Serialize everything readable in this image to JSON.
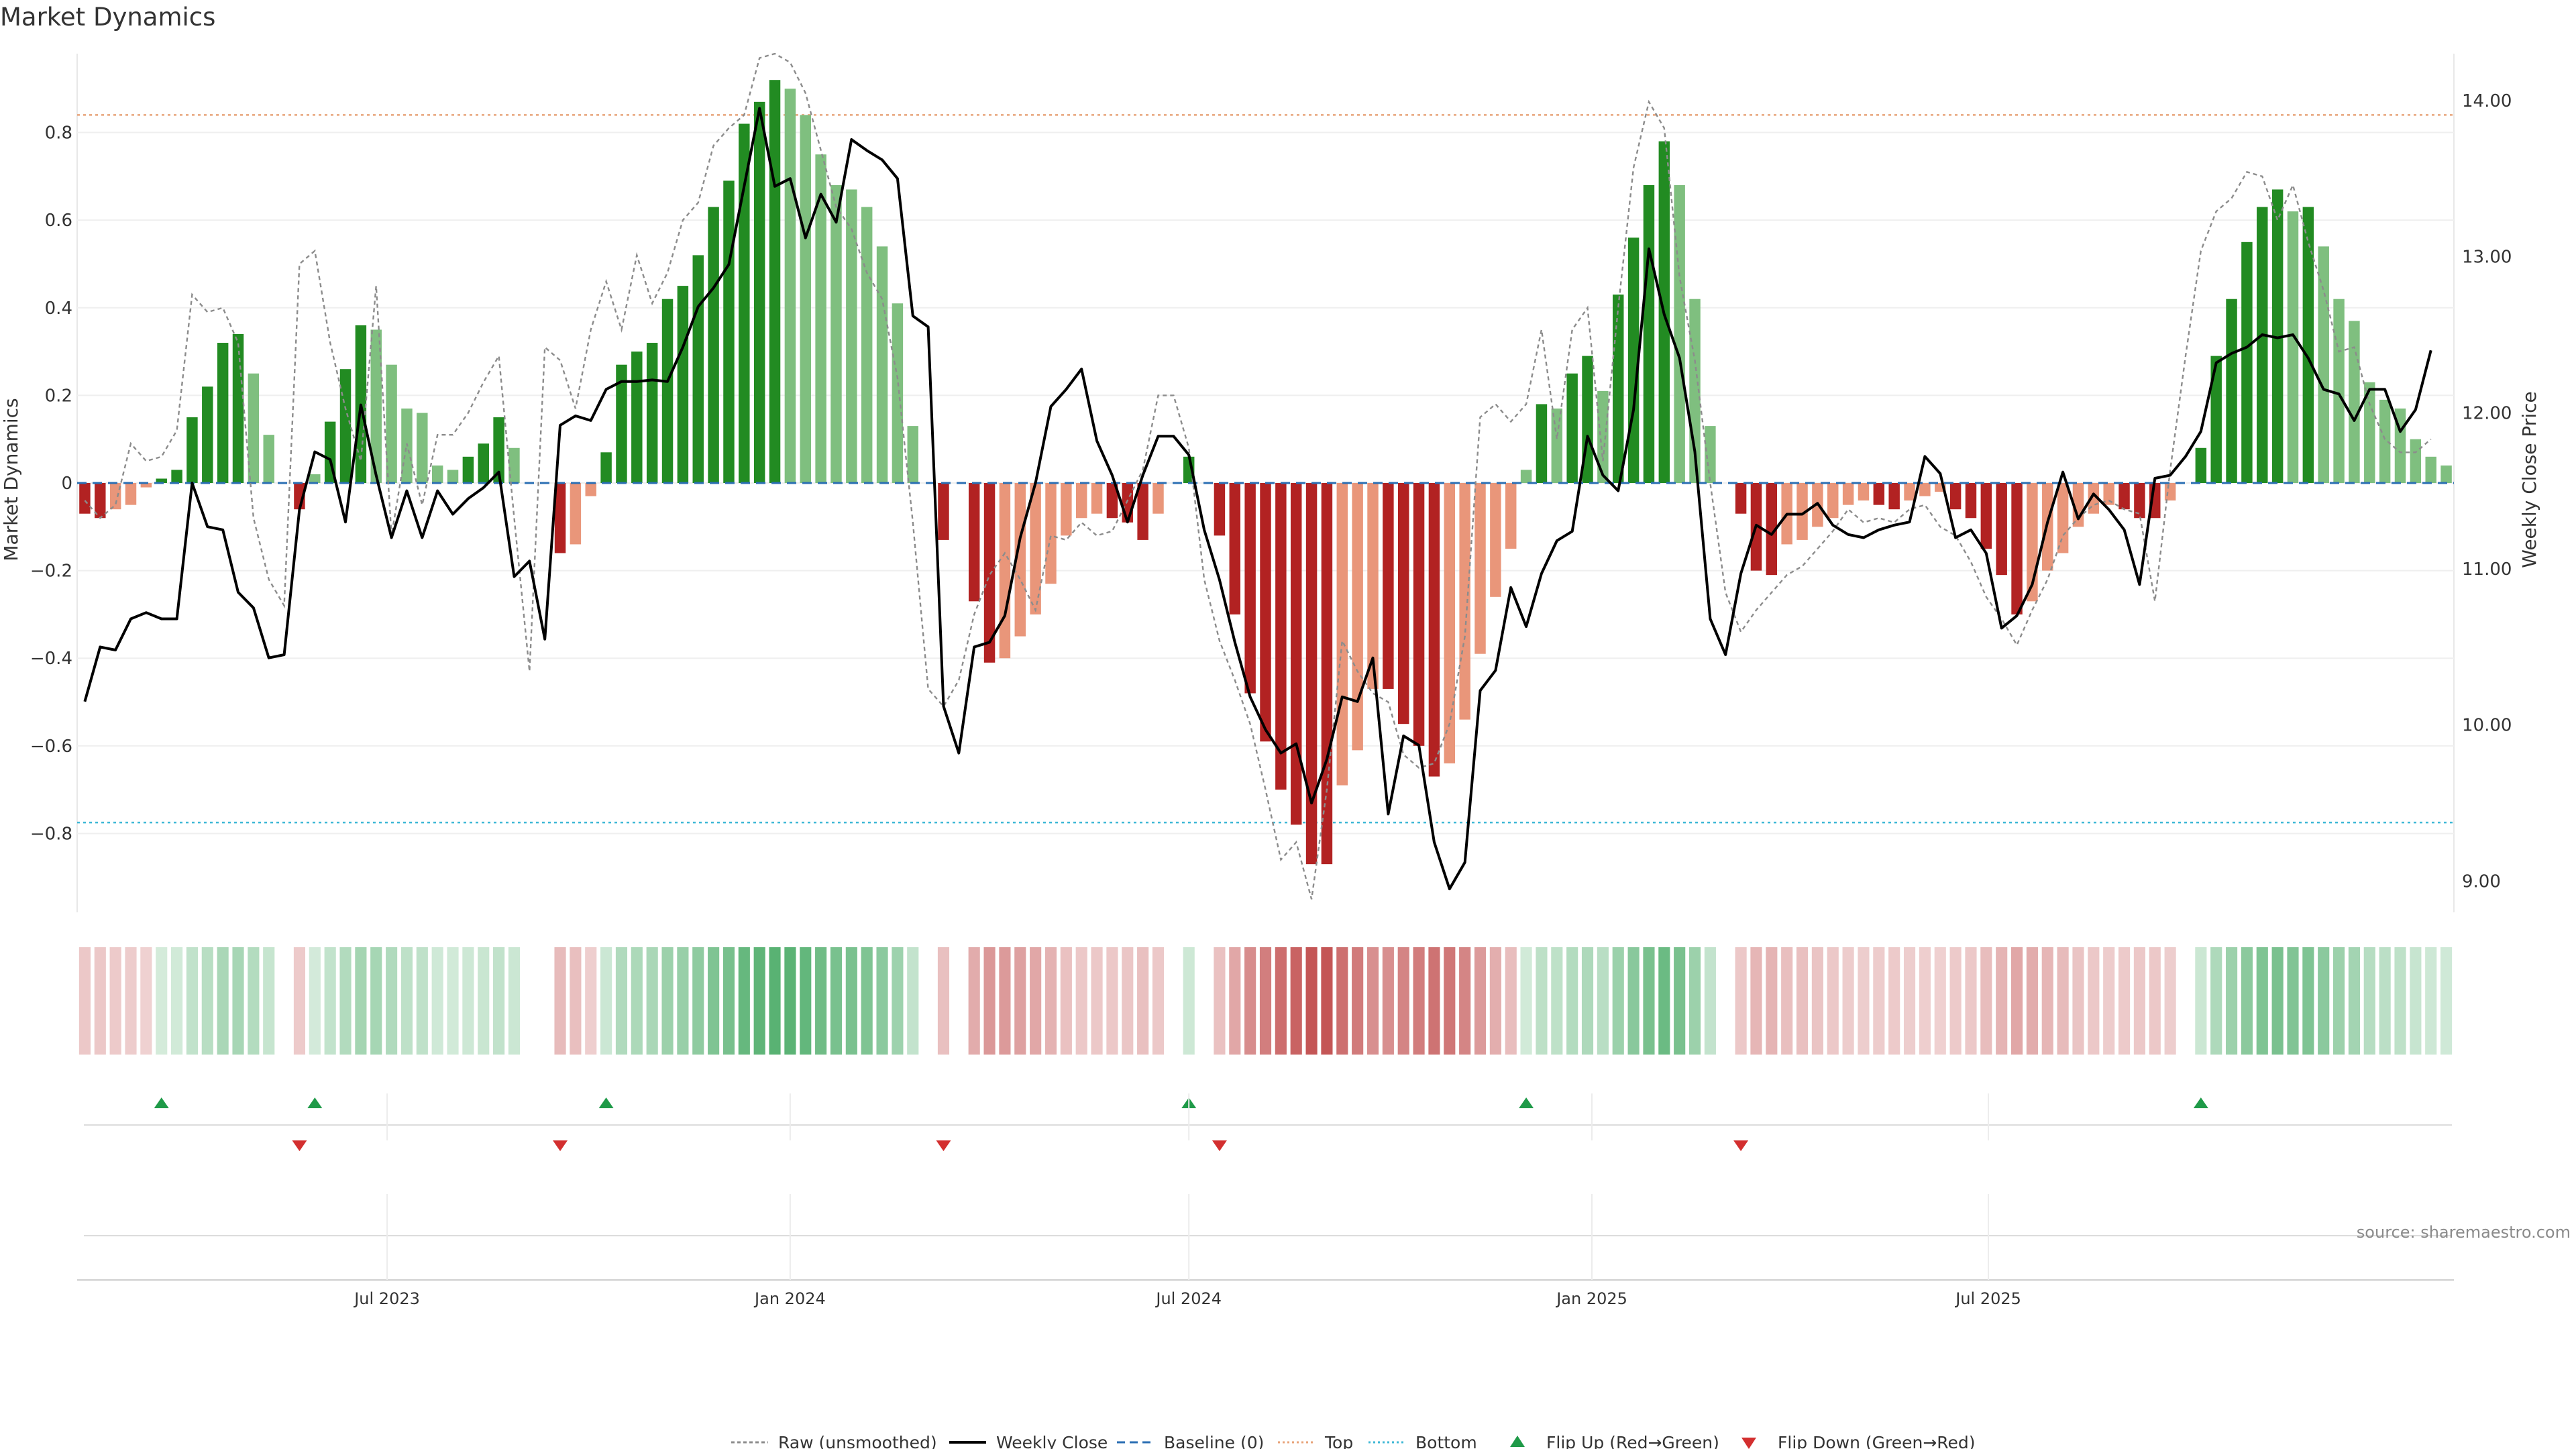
{
  "chart_data": {
    "type": "bar",
    "title": "Market Dynamics",
    "ylabel_left": "Market Dynamics",
    "ylabel_right": "Weekly Close Price",
    "source": "source: sharemaestro.com",
    "ylim_left": [
      -0.98,
      0.98
    ],
    "ylim_right": [
      8.8,
      14.3
    ],
    "y_ticks_left": [
      0.8,
      0.6,
      0.4,
      0.2,
      0,
      -0.2,
      -0.4,
      -0.6,
      -0.8
    ],
    "y_tick_labels_left": [
      "0.8",
      "0.6",
      "0.4",
      "0.2",
      "0",
      "−0.2",
      "−0.4",
      "−0.6",
      "−0.8"
    ],
    "y_ticks_right": [
      14,
      13,
      12,
      11,
      10,
      9
    ],
    "y_tick_labels_right": [
      "14.00",
      "13.00",
      "12.00",
      "11.00",
      "10.00",
      "9.00"
    ],
    "top_level": 0.84,
    "bottom_level": -0.775,
    "baseline": 0,
    "start_date": "2023-02-13",
    "x_ticks": [
      {
        "date": "2023-07-01",
        "label": "Jul 2023"
      },
      {
        "date": "2024-01-01",
        "label": "Jan 2024"
      },
      {
        "date": "2024-07-01",
        "label": "Jul 2024"
      },
      {
        "date": "2025-01-01",
        "label": "Jan 2025"
      },
      {
        "date": "2025-07-01",
        "label": "Jul 2025"
      }
    ],
    "bars": [
      -0.07,
      -0.08,
      -0.06,
      -0.05,
      -0.01,
      0.01,
      0.03,
      0.15,
      0.22,
      0.32,
      0.34,
      0.25,
      0.11,
      null,
      -0.06,
      0.02,
      0.14,
      0.26,
      0.36,
      0.35,
      0.27,
      0.17,
      0.16,
      0.04,
      0.03,
      0.06,
      0.09,
      0.15,
      0.08,
      null,
      null,
      -0.16,
      -0.14,
      -0.03,
      0.07,
      0.27,
      0.3,
      0.32,
      0.42,
      0.45,
      0.52,
      0.63,
      0.69,
      0.82,
      0.87,
      0.92,
      0.9,
      0.84,
      0.75,
      0.68,
      0.67,
      0.63,
      0.54,
      0.41,
      0.13,
      null,
      -0.13,
      null,
      -0.27,
      -0.41,
      -0.4,
      -0.35,
      -0.3,
      -0.23,
      -0.12,
      -0.08,
      -0.07,
      -0.08,
      -0.09,
      -0.13,
      -0.07,
      null,
      0.06,
      null,
      -0.12,
      -0.3,
      -0.48,
      -0.59,
      -0.7,
      -0.78,
      -0.87,
      -0.87,
      -0.69,
      -0.61,
      -0.47,
      -0.47,
      -0.55,
      -0.6,
      -0.67,
      -0.64,
      -0.54,
      -0.39,
      -0.26,
      -0.15,
      0.03,
      0.18,
      0.17,
      0.25,
      0.29,
      0.21,
      0.43,
      0.56,
      0.68,
      0.78,
      0.68,
      0.42,
      0.13,
      null,
      -0.07,
      -0.2,
      -0.21,
      -0.14,
      -0.13,
      -0.1,
      -0.08,
      -0.05,
      -0.04,
      -0.05,
      -0.06,
      -0.04,
      -0.03,
      -0.02,
      -0.06,
      -0.08,
      -0.15,
      -0.21,
      -0.3,
      -0.27,
      -0.2,
      -0.16,
      -0.1,
      -0.07,
      -0.05,
      -0.06,
      -0.08,
      -0.08,
      -0.04,
      null,
      0.08,
      0.29,
      0.42,
      0.55,
      0.63,
      0.67,
      0.62,
      0.63,
      0.54,
      0.42,
      0.37,
      0.23,
      0.19,
      0.17,
      0.1,
      0.06,
      0.04
    ],
    "raw": [
      -0.04,
      -0.08,
      -0.05,
      0.09,
      0.05,
      0.06,
      0.12,
      0.43,
      0.39,
      0.4,
      0.32,
      -0.08,
      -0.22,
      -0.28,
      0.5,
      0.53,
      0.32,
      0.17,
      0.05,
      0.45,
      -0.12,
      0.09,
      -0.05,
      0.11,
      0.11,
      0.16,
      0.23,
      0.29,
      -0.08,
      -0.43,
      0.31,
      0.28,
      0.17,
      0.35,
      0.46,
      0.35,
      0.52,
      0.41,
      0.48,
      0.6,
      0.64,
      0.77,
      0.81,
      0.84,
      0.97,
      0.98,
      0.96,
      0.89,
      0.76,
      0.63,
      0.58,
      0.48,
      0.42,
      0.24,
      -0.09,
      -0.47,
      -0.51,
      -0.45,
      -0.3,
      -0.21,
      -0.16,
      -0.22,
      -0.29,
      -0.12,
      -0.13,
      -0.09,
      -0.12,
      -0.11,
      -0.04,
      0.03,
      0.2,
      0.2,
      0.08,
      -0.22,
      -0.36,
      -0.45,
      -0.55,
      -0.7,
      -0.86,
      -0.82,
      -0.95,
      -0.7,
      -0.36,
      -0.43,
      -0.48,
      -0.5,
      -0.62,
      -0.65,
      -0.64,
      -0.55,
      -0.35,
      0.15,
      0.18,
      0.14,
      0.18,
      0.35,
      0.1,
      0.35,
      0.4,
      0.05,
      0.4,
      0.72,
      0.87,
      0.81,
      0.47,
      0.28,
      0.0,
      -0.25,
      -0.34,
      -0.29,
      -0.25,
      -0.21,
      -0.19,
      -0.15,
      -0.11,
      -0.06,
      -0.09,
      -0.08,
      -0.09,
      -0.06,
      -0.05,
      -0.1,
      -0.12,
      -0.18,
      -0.26,
      -0.31,
      -0.37,
      -0.29,
      -0.22,
      -0.12,
      -0.08,
      -0.05,
      -0.04,
      -0.06,
      -0.07,
      -0.27,
      0.03,
      0.29,
      0.53,
      0.62,
      0.65,
      0.71,
      0.7,
      0.6,
      0.68,
      0.55,
      0.44,
      0.3,
      0.31,
      0.18,
      0.1,
      0.07,
      0.07,
      0.1
    ],
    "close": [
      10.15,
      10.5,
      10.48,
      10.68,
      10.72,
      10.68,
      10.68,
      11.55,
      11.27,
      11.25,
      10.85,
      10.75,
      10.43,
      10.45,
      11.38,
      11.75,
      11.7,
      11.3,
      12.05,
      11.6,
      11.2,
      11.5,
      11.2,
      11.5,
      11.35,
      11.45,
      11.52,
      11.62,
      10.95,
      11.05,
      10.55,
      11.92,
      11.98,
      11.95,
      12.15,
      12.2,
      12.2,
      12.21,
      12.2,
      12.42,
      12.68,
      12.8,
      12.95,
      13.45,
      13.95,
      13.45,
      13.5,
      13.12,
      13.4,
      13.22,
      13.75,
      13.68,
      13.62,
      13.5,
      12.62,
      12.55,
      10.12,
      9.82,
      10.5,
      10.53,
      10.7,
      11.2,
      11.55,
      12.04,
      12.15,
      12.28,
      11.82,
      11.6,
      11.3,
      11.6,
      11.85,
      11.85,
      11.73,
      11.25,
      10.93,
      10.53,
      10.18,
      9.97,
      9.82,
      9.88,
      9.5,
      9.78,
      10.18,
      10.15,
      10.43,
      9.43,
      9.93,
      9.87,
      9.25,
      8.95,
      9.12,
      10.22,
      10.35,
      10.88,
      10.63,
      10.97,
      11.18,
      11.24,
      11.85,
      11.6,
      11.5,
      12.02,
      13.05,
      12.63,
      12.35,
      11.75,
      10.68,
      10.45,
      10.97,
      11.28,
      11.22,
      11.35,
      11.35,
      11.42,
      11.28,
      11.22,
      11.2,
      11.25,
      11.28,
      11.3,
      11.72,
      11.61,
      11.2,
      11.25,
      11.1,
      10.62,
      10.7,
      10.9,
      11.3,
      11.62,
      11.32,
      11.48,
      11.38,
      11.25,
      10.9,
      11.58,
      11.6,
      11.72,
      11.88,
      12.32,
      12.38,
      12.42,
      12.5,
      12.48,
      12.5,
      12.35,
      12.15,
      12.12,
      11.95,
      12.15,
      12.15,
      11.88,
      12.02,
      12.4
    ]
  }
}
